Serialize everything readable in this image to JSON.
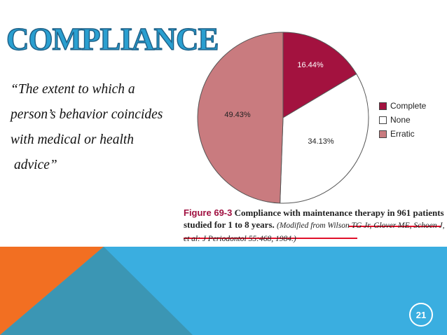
{
  "slide": {
    "title": "COMPLIANCE",
    "quote_lines": [
      "“The extent to which a",
      "person’s  behavior coincides",
      "with medical or health",
      "advice”"
    ],
    "page_number": "21"
  },
  "caption": {
    "figure_label": "Figure 69-3",
    "text": " Compliance with maintenance therapy in 961 patients studied for 1 to 8 years. ",
    "citation": "(Modified from Wilson TG Jr, Glover ME, Schoen J, et al: J Periodontol 55:468, 1984.)"
  },
  "colors": {
    "title_fill": "#2a9fd0",
    "complete": "#a3123f",
    "none": "#ffffff",
    "erratic": "#c97b7f",
    "underline": "#e0102a",
    "band_blue": "#3aaee0",
    "band_orange": "#f26f22",
    "band_teal": "#3b96b4"
  },
  "chart_data": {
    "type": "pie",
    "slices": [
      {
        "label": "Complete",
        "value": 16.44,
        "display": "16.44%",
        "color": "#a3123f"
      },
      {
        "label": "None",
        "value": 34.13,
        "display": "34.13%",
        "color": "#ffffff"
      },
      {
        "label": "Erratic",
        "value": 49.43,
        "display": "49.43%",
        "color": "#c97b7f"
      }
    ],
    "legend_position": "right"
  }
}
